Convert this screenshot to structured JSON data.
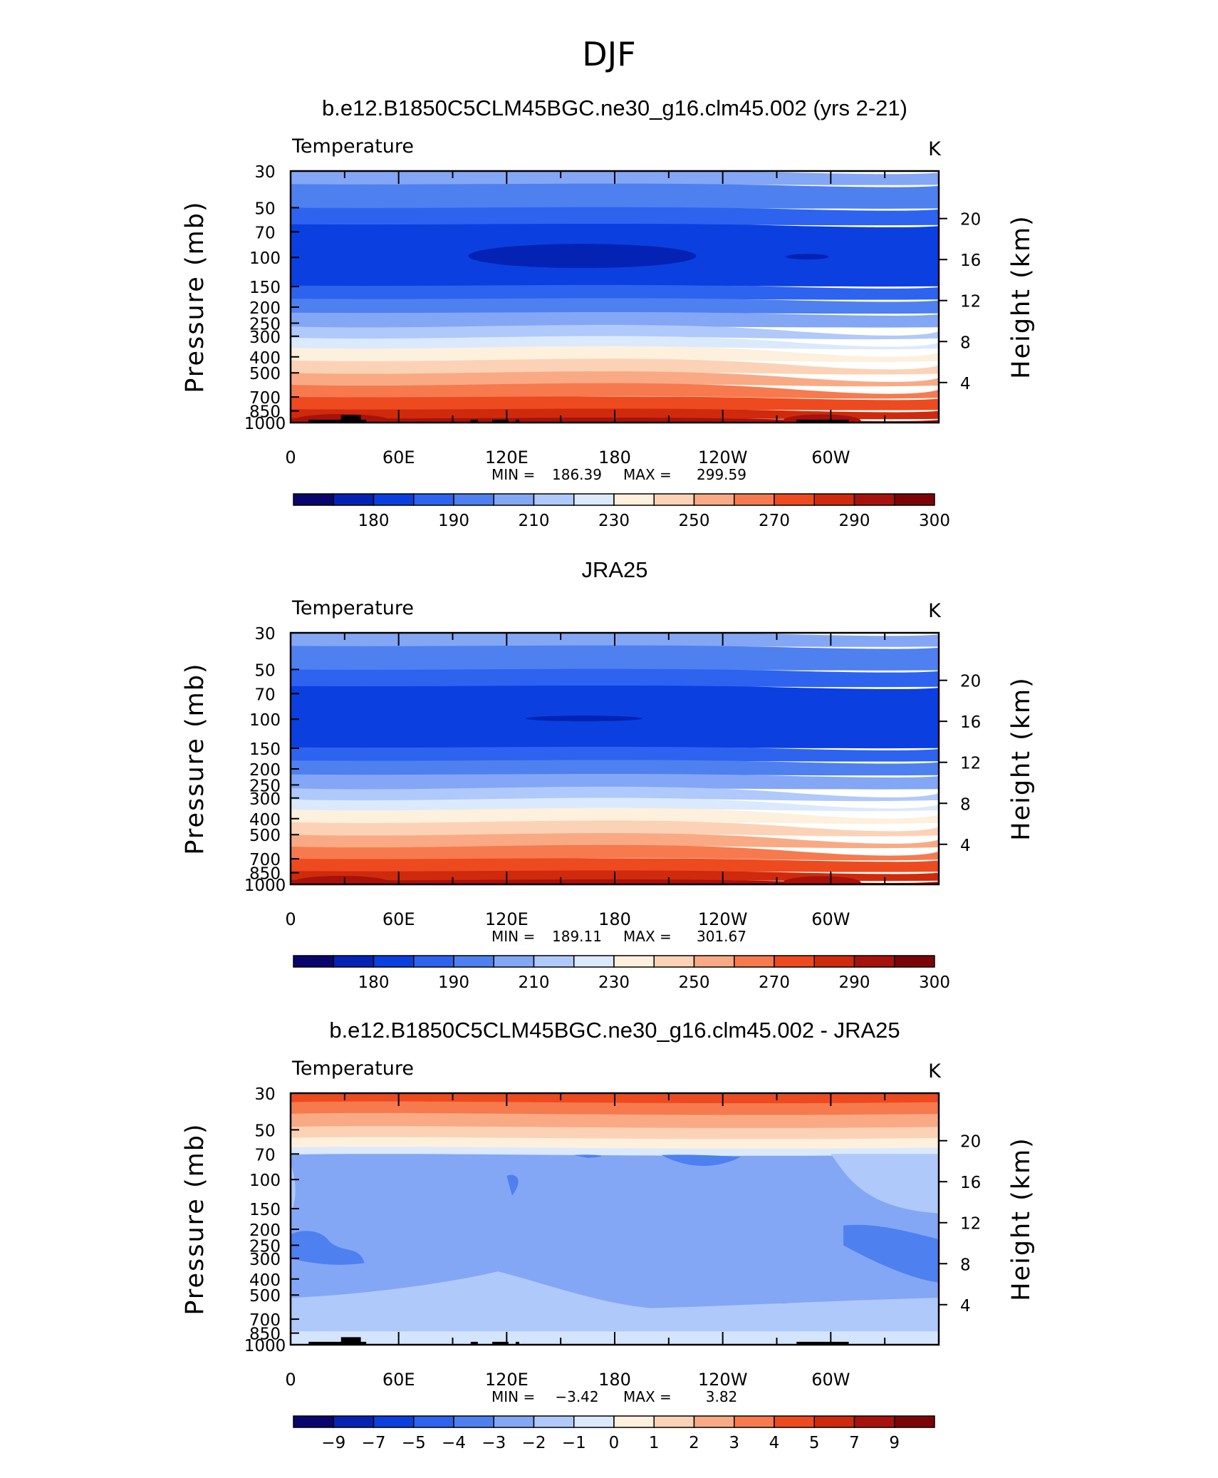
{
  "page_title": "DJF",
  "colors": {
    "temp_palette": [
      "#08066e",
      "#0423b5",
      "#0b3fe0",
      "#2d63ef",
      "#4e80f0",
      "#83a7f5",
      "#b0c9fb",
      "#dbe9fd",
      "#fdf0dc",
      "#fcd2b6",
      "#f9aa84",
      "#f67a4e",
      "#ee4a1f",
      "#cf2a0c",
      "#a8120c",
      "#7d0406"
    ],
    "diff_palette": [
      "#08066e",
      "#0423b5",
      "#0b3fe0",
      "#2d63ef",
      "#4e80f0",
      "#83a7f5",
      "#b0c9fb",
      "#dbe9fd",
      "#fdf0dc",
      "#fcd2b6",
      "#f9aa84",
      "#f67a4e",
      "#ee4a1f",
      "#cf2a0c",
      "#a8120c",
      "#7d0406"
    ],
    "terrain": "#000000"
  },
  "chart_data": [
    {
      "type": "heatmap",
      "title": "b.e12.B1850C5CLM45BGC.ne30_g16.clm45.002 (yrs 2-21)",
      "variable": "Temperature",
      "units": "K",
      "ylabel": "Pressure (mb)",
      "y2label": "Height (km)",
      "x_ticks": [
        "0",
        "60E",
        "120E",
        "180",
        "120W",
        "60W"
      ],
      "x_range": [
        0,
        360
      ],
      "y_ticks": [
        30,
        50,
        70,
        100,
        150,
        200,
        250,
        300,
        400,
        500,
        700,
        850,
        1000
      ],
      "y_range": [
        30,
        1000
      ],
      "y_scale": "log",
      "y2_ticks": [
        20,
        16,
        12,
        8,
        4
      ],
      "min_label": "MIN =",
      "min": "186.39",
      "max_label": "MAX =",
      "max": "299.59",
      "colorbar_labels": [
        "180",
        "190",
        "210",
        "230",
        "250",
        "270",
        "290",
        "300"
      ]
    },
    {
      "type": "heatmap",
      "title": "JRA25",
      "variable": "Temperature",
      "units": "K",
      "ylabel": "Pressure (mb)",
      "y2label": "Height (km)",
      "x_ticks": [
        "0",
        "60E",
        "120E",
        "180",
        "120W",
        "60W"
      ],
      "x_range": [
        0,
        360
      ],
      "y_ticks": [
        30,
        50,
        70,
        100,
        150,
        200,
        250,
        300,
        400,
        500,
        700,
        850,
        1000
      ],
      "y_range": [
        30,
        1000
      ],
      "y_scale": "log",
      "y2_ticks": [
        20,
        16,
        12,
        8,
        4
      ],
      "min_label": "MIN =",
      "min": "189.11",
      "max_label": "MAX =",
      "max": "301.67",
      "colorbar_labels": [
        "180",
        "190",
        "210",
        "230",
        "250",
        "270",
        "290",
        "300"
      ]
    },
    {
      "type": "heatmap",
      "title": "b.e12.B1850C5CLM45BGC.ne30_g16.clm45.002 - JRA25",
      "variable": "Temperature",
      "units": "K",
      "ylabel": "Pressure (mb)",
      "y2label": "Height (km)",
      "x_ticks": [
        "0",
        "60E",
        "120E",
        "180",
        "120W",
        "60W"
      ],
      "x_range": [
        0,
        360
      ],
      "y_ticks": [
        30,
        50,
        70,
        100,
        150,
        200,
        250,
        300,
        400,
        500,
        700,
        850,
        1000
      ],
      "y_range": [
        30,
        1000
      ],
      "y_scale": "log",
      "y2_ticks": [
        20,
        16,
        12,
        8,
        4
      ],
      "min_label": "MIN =",
      "min": "−3.42",
      "max_label": "MAX =",
      "max": "3.82",
      "colorbar_labels": [
        "−9",
        "−7",
        "−5",
        "−4",
        "−3",
        "−2",
        "−1",
        "0",
        "1",
        "2",
        "3",
        "4",
        "5",
        "7",
        "9"
      ]
    }
  ]
}
